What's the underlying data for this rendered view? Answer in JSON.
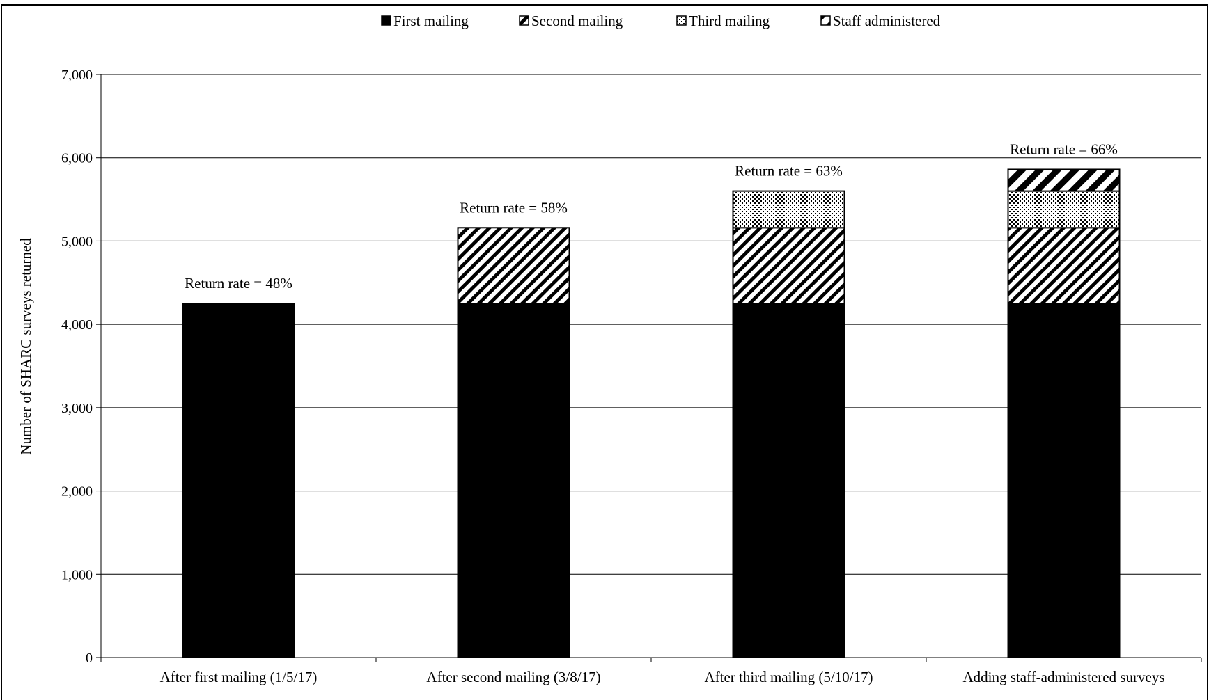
{
  "chart_data": {
    "type": "bar",
    "stacked": true,
    "title": "",
    "xlabel": "",
    "ylabel": "Number of SHARC surveys returned",
    "ylim": [
      0,
      7000
    ],
    "yticks": [
      0,
      1000,
      2000,
      3000,
      4000,
      5000,
      6000,
      7000
    ],
    "ytick_labels": [
      "0",
      "1,000",
      "2,000",
      "3,000",
      "4,000",
      "5,000",
      "6,000",
      "7,000"
    ],
    "grid": true,
    "legend_position": "top",
    "categories": [
      "After first mailing (1/5/17)",
      "After second mailing (3/8/17)",
      "After third mailing (5/10/17)",
      "Adding staff-administered surveys"
    ],
    "series": [
      {
        "name": "First mailing",
        "pattern": "solid",
        "values": [
          4250,
          4250,
          4250,
          4250
        ]
      },
      {
        "name": "Second mailing",
        "pattern": "diagonal-hatch",
        "values": [
          0,
          910,
          910,
          910
        ]
      },
      {
        "name": "Third mailing",
        "pattern": "dots",
        "values": [
          0,
          0,
          440,
          440
        ]
      },
      {
        "name": "Staff administered",
        "pattern": "wide-diagonal-hatch",
        "values": [
          0,
          0,
          0,
          260
        ]
      }
    ],
    "annotations": [
      "Return rate = 48%",
      "Return rate = 58%",
      "Return rate = 63%",
      "Return rate = 66%"
    ],
    "colors": {
      "ink": "#000000",
      "background": "#ffffff"
    }
  }
}
